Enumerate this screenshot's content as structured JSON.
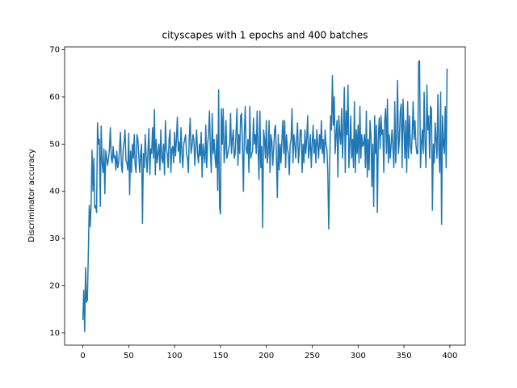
{
  "chart_data": {
    "type": "line",
    "title": "cityscapes with 1 epochs and 400 batches",
    "y_label": "Discriminator accuracy",
    "color": "#1f77b4",
    "xlim": [
      -19.85,
      416.85
    ],
    "xticks": [
      0,
      50,
      100,
      150,
      200,
      250,
      300,
      350,
      400
    ],
    "ylim": [
      7.4,
      70.6
    ],
    "yticks": [
      10,
      20,
      30,
      40,
      50,
      60,
      70
    ],
    "values": [
      12.7,
      19,
      10.3,
      23.8,
      16.5,
      17,
      27,
      37,
      32.5,
      37,
      48.7,
      40,
      47,
      36.5,
      37,
      35.5,
      54.5,
      50,
      51,
      36.8,
      53.8,
      46,
      44,
      49,
      39.5,
      48.6,
      47,
      45.5,
      47,
      49,
      53.5,
      47,
      46,
      49.5,
      47,
      47.5,
      44.5,
      48.5,
      45,
      46,
      49,
      52.5,
      45.5,
      44,
      49,
      50.5,
      53,
      46.5,
      46,
      44.5,
      52.3,
      39.3,
      48.5,
      44,
      50,
      47,
      52,
      45.5,
      44,
      52,
      51,
      47.5,
      44,
      48,
      50,
      33.2,
      48,
      45,
      52,
      47.5,
      44,
      48.5,
      53.3,
      43.5,
      49,
      48,
      53.5,
      47,
      57.3,
      43.5,
      51,
      46,
      48,
      50,
      44.5,
      53,
      47,
      46,
      50,
      43.5,
      55,
      49,
      48,
      45,
      51,
      53,
      44,
      49,
      49.5,
      46,
      52.5,
      47.5,
      51,
      55.7,
      48.5,
      50.5,
      46,
      53.5,
      48,
      45,
      50,
      51,
      52,
      48,
      47,
      44,
      51.5,
      55.5,
      48,
      49.5,
      52,
      51,
      45.5,
      49.5,
      53,
      48,
      46,
      50,
      47.5,
      52.5,
      43,
      50,
      48,
      46,
      54,
      45,
      50,
      52,
      57,
      49,
      44,
      56.5,
      48,
      51,
      47.5,
      45,
      52,
      40.2,
      61.5,
      36.5,
      35.2,
      57.5,
      50,
      57.5,
      46,
      49,
      55,
      47,
      48,
      49,
      50,
      56.5,
      48,
      51,
      53,
      47,
      48,
      52.5,
      57.5,
      45.5,
      52,
      48,
      56,
      56.5,
      50,
      40,
      52,
      58,
      49,
      48,
      51,
      44,
      58,
      47,
      48,
      48.5,
      55.5,
      50,
      52,
      48,
      57,
      49,
      42.5,
      57,
      45,
      49.5,
      32.3,
      53,
      51,
      47,
      55,
      46,
      48,
      55,
      44,
      52,
      50.5,
      45.5,
      49,
      53,
      54,
      47,
      38.7,
      52,
      44.5,
      50,
      46,
      51,
      55,
      48,
      55,
      45,
      52,
      49,
      48,
      43.5,
      50,
      51,
      57.5,
      46,
      52,
      50,
      47,
      51,
      54.5,
      46,
      49,
      53,
      53,
      44,
      50,
      46,
      53,
      48,
      51,
      56,
      47,
      49,
      52,
      45,
      50,
      54,
      48,
      51,
      46,
      53,
      50,
      47,
      52,
      49,
      55,
      48,
      51,
      46,
      53,
      50,
      49,
      44,
      32,
      45,
      56,
      53,
      64.5,
      54,
      60,
      48,
      52,
      55,
      43,
      56,
      52,
      50,
      57.5,
      47,
      53,
      62,
      44,
      57,
      52,
      62.5,
      45,
      50,
      56,
      47,
      51,
      45,
      59,
      44,
      53,
      48,
      54,
      46,
      58,
      47,
      52,
      49.5,
      50,
      52,
      45,
      57,
      43,
      51,
      44.5,
      55,
      52,
      41,
      50,
      36.8,
      56,
      48,
      54,
      35.5,
      51,
      55.5,
      49,
      56,
      52,
      53,
      44,
      55,
      57.5,
      48,
      59.5,
      46,
      52,
      47,
      50,
      53,
      49,
      45,
      59,
      46,
      52,
      63.5,
      48,
      51,
      57,
      58.5,
      45,
      59.5,
      53,
      47,
      55,
      44,
      59,
      47,
      56,
      50,
      48,
      52,
      59,
      51,
      55,
      50,
      48,
      48,
      67.5,
      67.7,
      45,
      50,
      53,
      48,
      61,
      50,
      45,
      62.5,
      53,
      56,
      47,
      58,
      57.5,
      36,
      50,
      46,
      54.5,
      51,
      47,
      60.5,
      49,
      44,
      61,
      33,
      56,
      50,
      48,
      58,
      45,
      66
    ]
  }
}
